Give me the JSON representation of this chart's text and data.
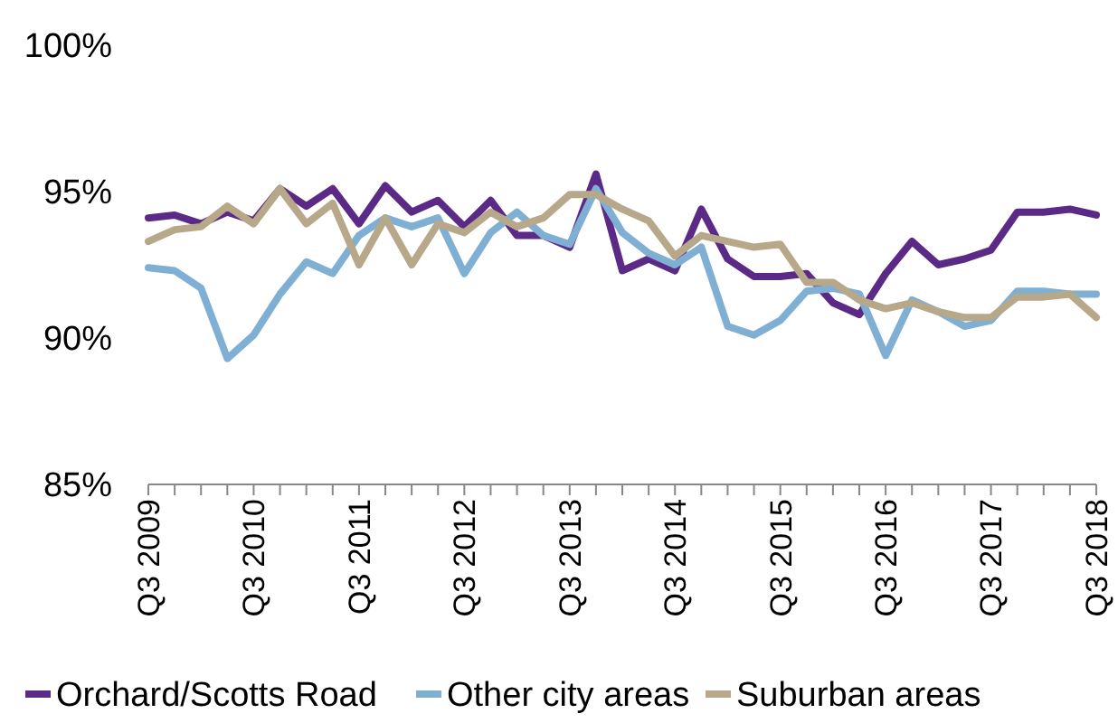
{
  "chart_data": {
    "type": "line",
    "categories": [
      "Q3 2009",
      null,
      null,
      null,
      "Q3 2010",
      null,
      null,
      null,
      "Q3 2011",
      null,
      null,
      null,
      "Q3 2012",
      null,
      null,
      null,
      "Q3 2013",
      null,
      null,
      null,
      "Q3 2014",
      null,
      null,
      null,
      "Q3 2015",
      null,
      null,
      null,
      "Q3 2016",
      null,
      null,
      null,
      "Q3 2017",
      null,
      null,
      null,
      "Q3 2018"
    ],
    "series": [
      {
        "name": "Orchard/Scotts Road",
        "color": "#5b2a86",
        "values": [
          94.1,
          94.2,
          93.9,
          94.3,
          94.0,
          95.1,
          94.5,
          95.1,
          93.9,
          95.2,
          94.3,
          94.7,
          93.8,
          94.7,
          93.5,
          93.5,
          93.1,
          95.6,
          92.3,
          92.7,
          92.3,
          94.4,
          92.7,
          92.1,
          92.1,
          92.2,
          91.2,
          90.8,
          92.2,
          93.3,
          92.5,
          92.7,
          93.0,
          94.3,
          94.3,
          94.4,
          94.2
        ]
      },
      {
        "name": "Other city areas",
        "color": "#7fb0d4",
        "values": [
          92.4,
          92.3,
          91.7,
          89.3,
          90.1,
          91.5,
          92.6,
          92.2,
          93.5,
          94.1,
          93.8,
          94.1,
          92.2,
          93.6,
          94.3,
          93.5,
          93.2,
          95.1,
          93.6,
          92.9,
          92.5,
          93.1,
          90.4,
          90.1,
          90.6,
          91.6,
          91.7,
          91.5,
          89.4,
          91.3,
          90.9,
          90.4,
          90.6,
          91.6,
          91.6,
          91.5,
          91.5
        ]
      },
      {
        "name": "Suburban areas",
        "color": "#b8a88a",
        "values": [
          93.3,
          93.7,
          93.8,
          94.5,
          93.9,
          95.1,
          93.9,
          94.6,
          92.5,
          94.1,
          92.5,
          93.9,
          93.6,
          94.3,
          93.8,
          94.1,
          94.9,
          94.9,
          94.4,
          94.0,
          92.8,
          93.5,
          93.3,
          93.1,
          93.2,
          91.9,
          91.9,
          91.3,
          91.0,
          91.2,
          90.9,
          90.7,
          90.7,
          91.4,
          91.4,
          91.5,
          90.7
        ]
      }
    ],
    "ylim": [
      85,
      100
    ],
    "yticks": [
      {
        "value": 85,
        "label": "85%"
      },
      {
        "value": 90,
        "label": "90%"
      },
      {
        "value": 95,
        "label": "95%"
      },
      {
        "value": 100,
        "label": "100%"
      }
    ],
    "legend": "bottom",
    "grid": false,
    "marker": "none",
    "line_style": "solid"
  }
}
